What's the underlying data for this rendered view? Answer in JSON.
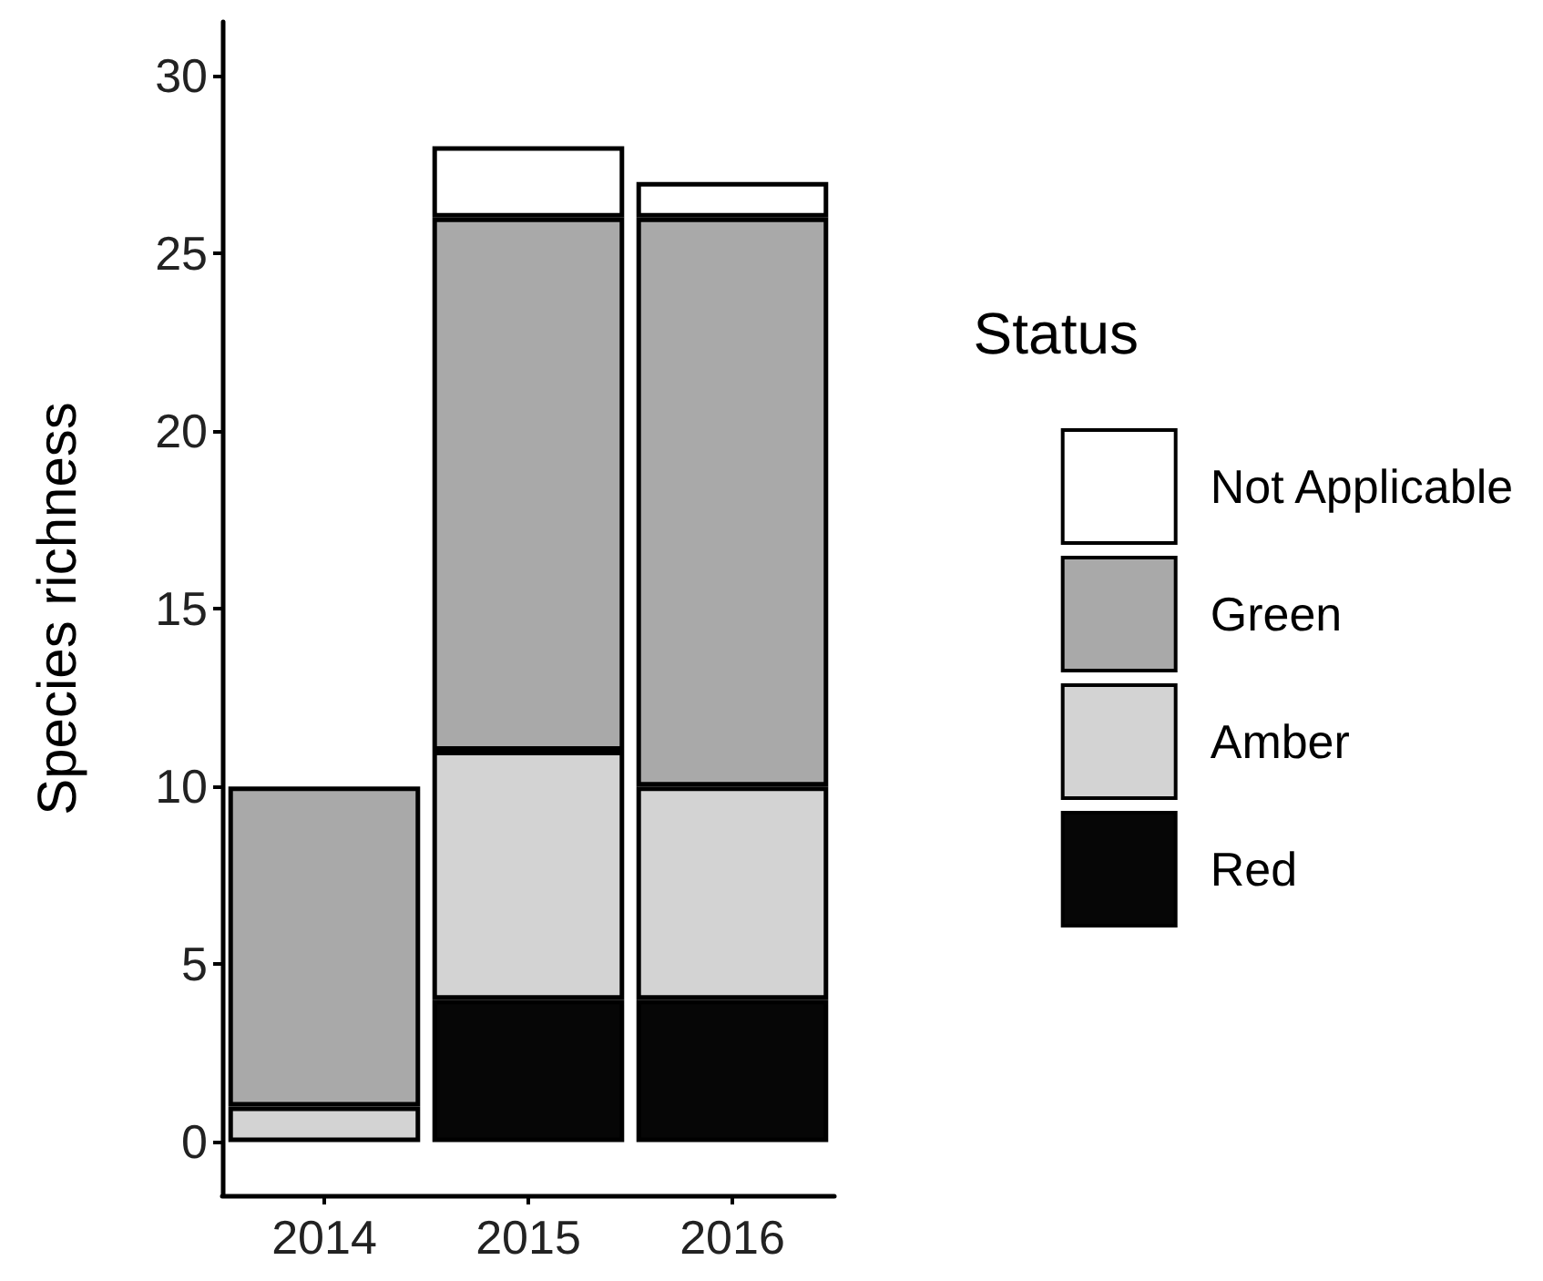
{
  "chart_data": {
    "type": "bar",
    "stacked": true,
    "categories": [
      "2014",
      "2015",
      "2016"
    ],
    "ylabel": "Species richness",
    "legend_title": "Status",
    "legend": "right",
    "grid": false,
    "ylim": [
      -1.5,
      31.5
    ],
    "yticks": [
      0,
      5,
      10,
      15,
      20,
      25,
      30
    ],
    "series": [
      {
        "name": "Red",
        "color": "#060606",
        "values": [
          0,
          4,
          4
        ]
      },
      {
        "name": "Amber",
        "color": "#d3d3d3",
        "values": [
          1,
          7,
          6
        ]
      },
      {
        "name": "Green",
        "color": "#a9a9a9",
        "values": [
          9,
          15,
          16
        ]
      },
      {
        "name": "Not Applicable",
        "color": "#ffffff",
        "values": [
          0,
          2,
          1
        ]
      }
    ]
  }
}
